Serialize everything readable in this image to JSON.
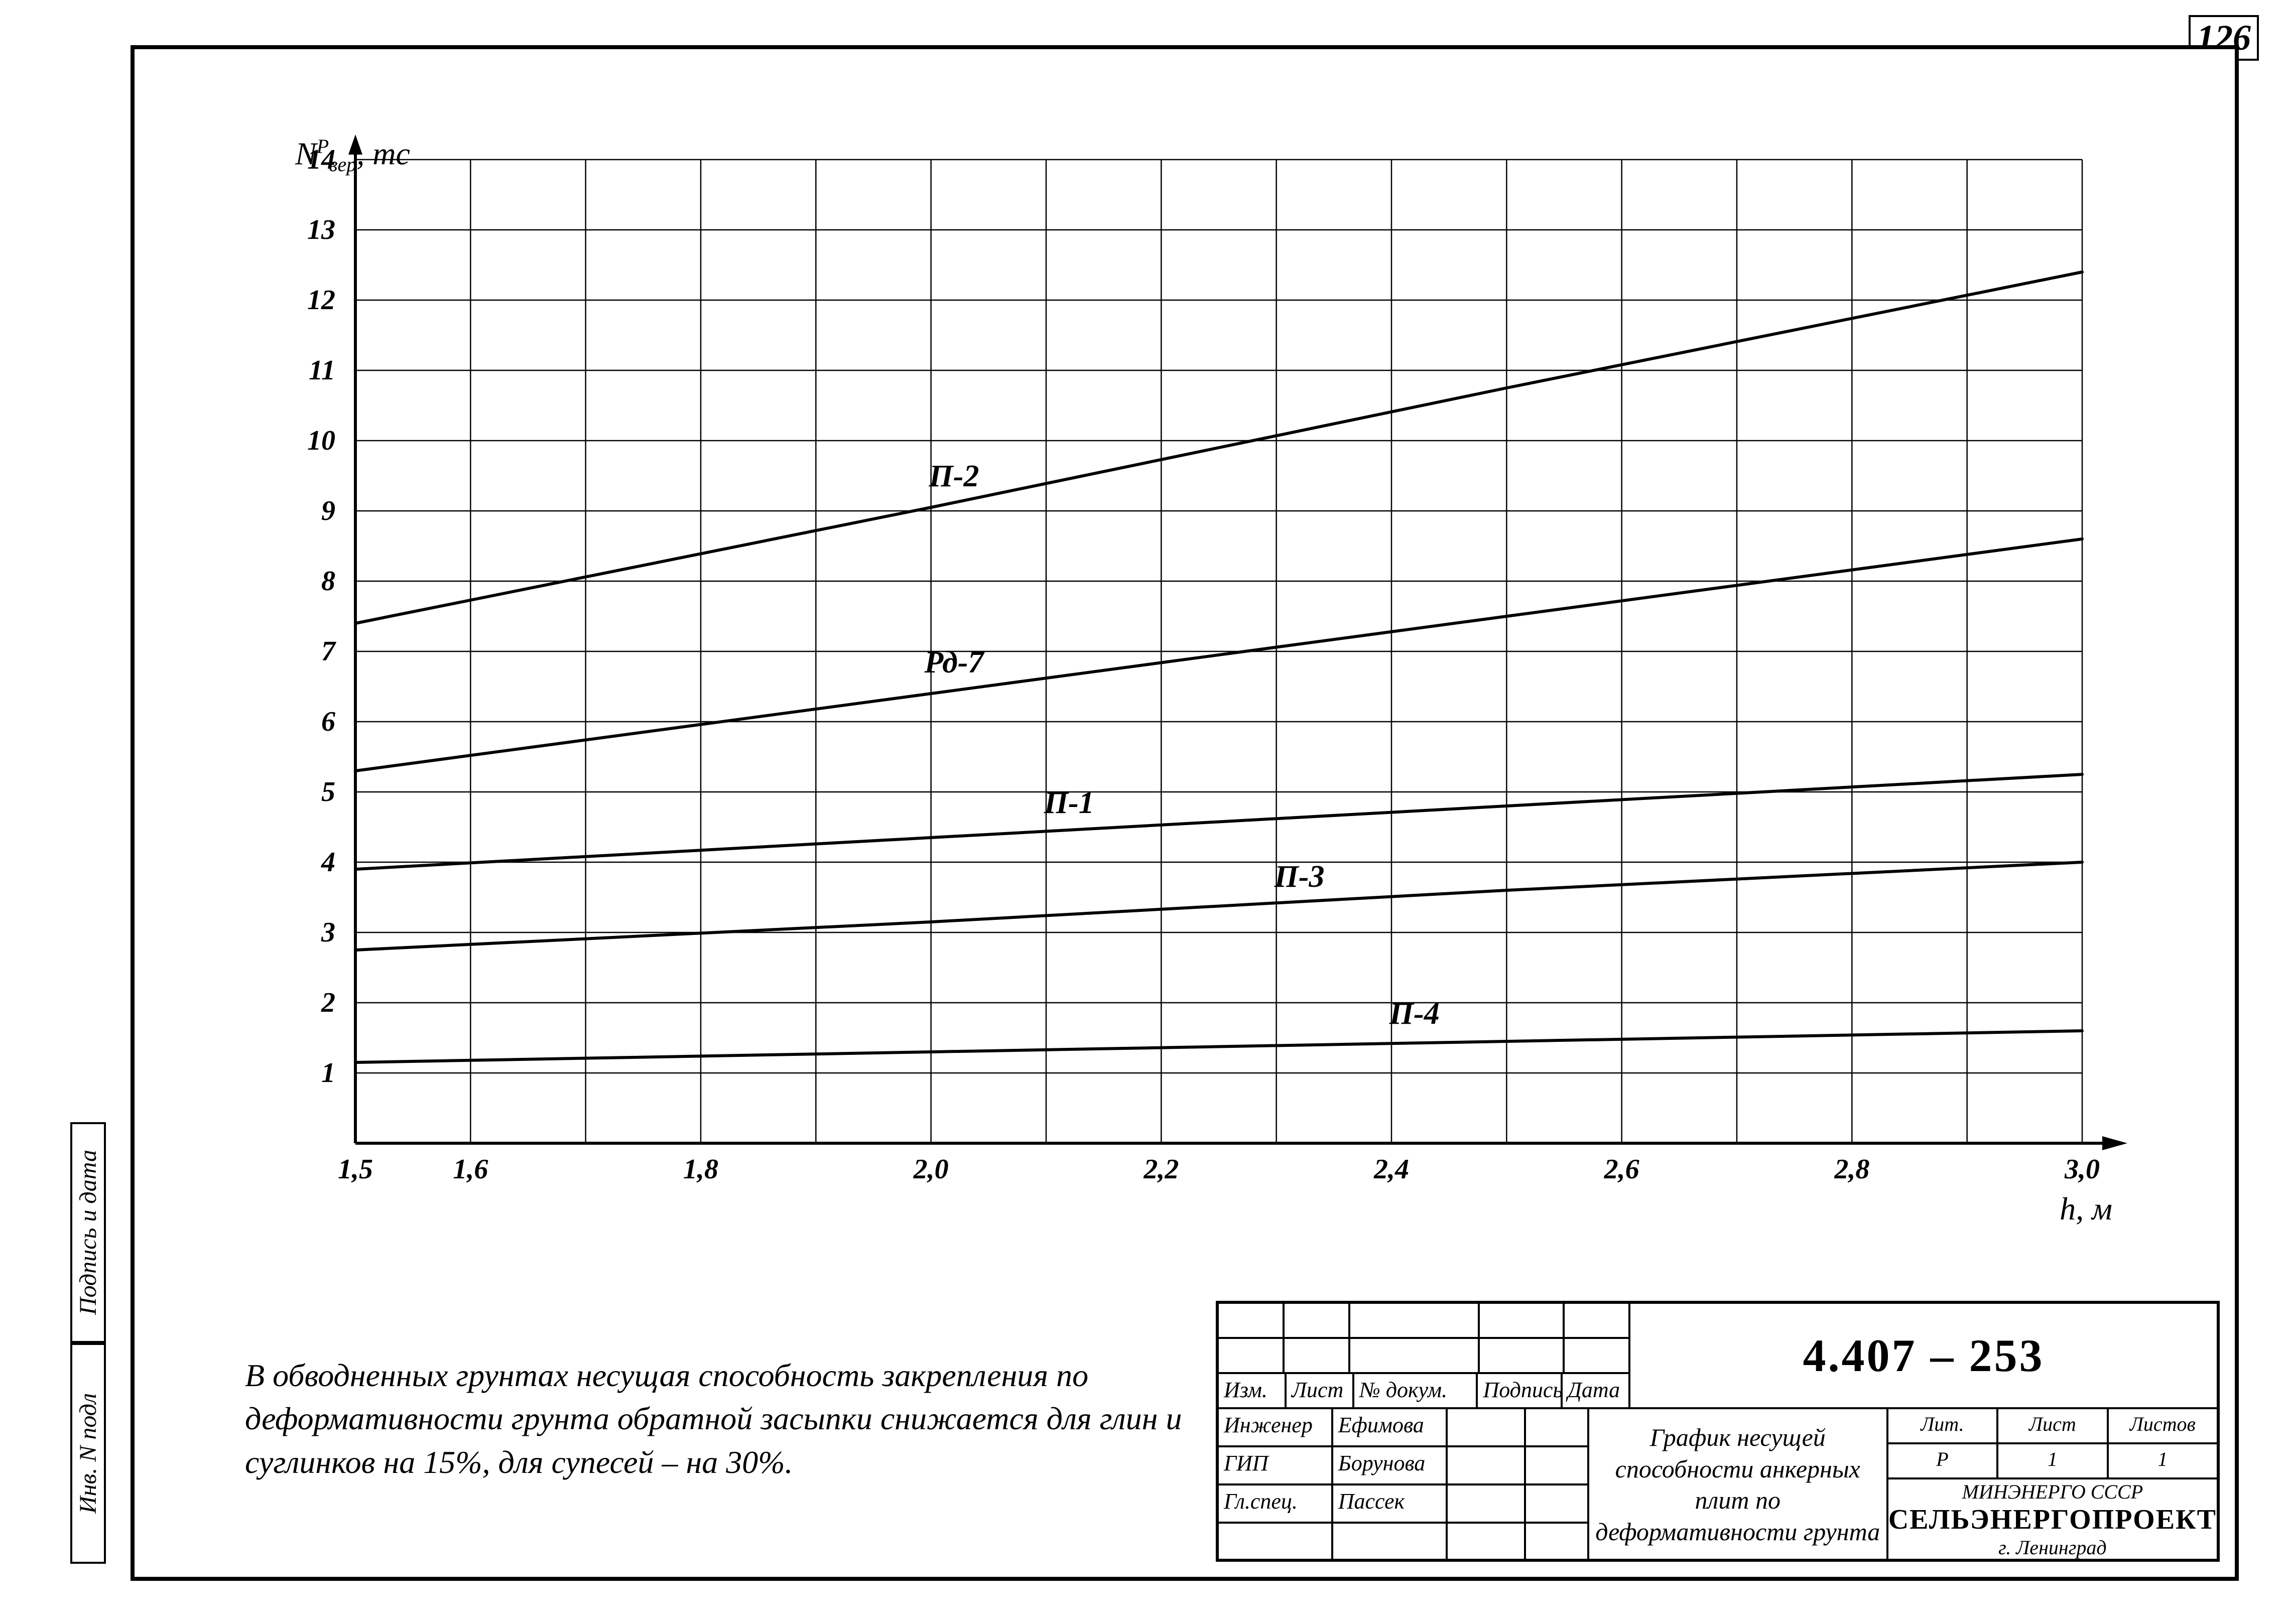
{
  "page_number": "126",
  "spine": {
    "top": "Подпись и дата",
    "bottom": "Инв. N подл"
  },
  "chart": {
    "type": "line",
    "background_color": "#ffffff",
    "grid_color": "#000000",
    "grid_width": 2.5,
    "axis_color": "#000000",
    "axis_width": 6,
    "line_color": "#000000",
    "line_width": 6,
    "y_axis": {
      "label": "Nᴾₐₑᵨ, тс",
      "label_html": "N<sup>P</sup><sub>вер</sub>, тс",
      "min": 0,
      "max": 14,
      "ticks": [
        1,
        2,
        3,
        4,
        5,
        6,
        7,
        8,
        9,
        10,
        11,
        12,
        13,
        14
      ]
    },
    "x_axis": {
      "label": "h, м",
      "min": 1.5,
      "max": 3.0,
      "major_ticks": [
        1.5,
        1.6,
        1.8,
        2.0,
        2.2,
        2.4,
        2.6,
        2.8,
        3.0
      ],
      "tick_labels": [
        "1,5",
        "1,6",
        "1,8",
        "2,0",
        "2,2",
        "2,4",
        "2,6",
        "2,8",
        "3,0"
      ],
      "grid_x": [
        1.5,
        1.6,
        1.7,
        1.8,
        1.9,
        2.0,
        2.1,
        2.2,
        2.3,
        2.4,
        2.5,
        2.6,
        2.7,
        2.8,
        2.9,
        3.0
      ]
    },
    "series": [
      {
        "name": "П-2",
        "label_at": {
          "x": 2.02,
          "y": 9.35
        },
        "points": [
          [
            1.5,
            7.4
          ],
          [
            2.0,
            9.05
          ],
          [
            2.5,
            10.75
          ],
          [
            3.0,
            12.4
          ]
        ]
      },
      {
        "name": "Рд-7",
        "label_at": {
          "x": 2.02,
          "y": 6.7
        },
        "points": [
          [
            1.5,
            5.3
          ],
          [
            2.0,
            6.4
          ],
          [
            2.5,
            7.5
          ],
          [
            3.0,
            8.6
          ]
        ]
      },
      {
        "name": "П-1",
        "label_at": {
          "x": 2.12,
          "y": 4.7
        },
        "points": [
          [
            1.5,
            3.9
          ],
          [
            2.0,
            4.35
          ],
          [
            2.5,
            4.8
          ],
          [
            3.0,
            5.25
          ]
        ]
      },
      {
        "name": "П-3",
        "label_at": {
          "x": 2.32,
          "y": 3.65
        },
        "points": [
          [
            1.5,
            2.75
          ],
          [
            2.0,
            3.15
          ],
          [
            2.5,
            3.6
          ],
          [
            3.0,
            4.0
          ]
        ]
      },
      {
        "name": "П-4",
        "label_at": {
          "x": 2.42,
          "y": 1.7
        },
        "points": [
          [
            1.5,
            1.15
          ],
          [
            2.0,
            1.3
          ],
          [
            2.5,
            1.45
          ],
          [
            3.0,
            1.6
          ]
        ]
      }
    ],
    "title_fontsize": 62,
    "tick_fontsize": 56
  },
  "note": "В обводненных грунтах несущая способность закрепления по деформативности грунта обратной засыпки снижается для глин и суглинков на 15%, для супесей – на 30%.",
  "titleblock": {
    "doc_number": "4.407 – 253",
    "title": "График несущей способности анкерных плит по деформативности грунта",
    "columns_left": {
      "headers": [
        "Изм.",
        "Лист",
        "№ докум.",
        "Подпись",
        "Дата"
      ],
      "rows": [
        {
          "role": "Инженер",
          "name": "Ефимова"
        },
        {
          "role": "ГИП",
          "name": "Борунова"
        },
        {
          "role": "Гл.спец.",
          "name": "Пассек"
        }
      ]
    },
    "stage": {
      "lit": "Лит.",
      "lit_val": "Р",
      "sheet": "Лист",
      "sheet_val": "1",
      "sheets": "Листов",
      "sheets_val": "1"
    },
    "org_top": "МИНЭНЕРГО СССР",
    "org": "СЕЛЬЭНЕРГОПРОЕКТ",
    "org_city": "г. Ленинград"
  }
}
